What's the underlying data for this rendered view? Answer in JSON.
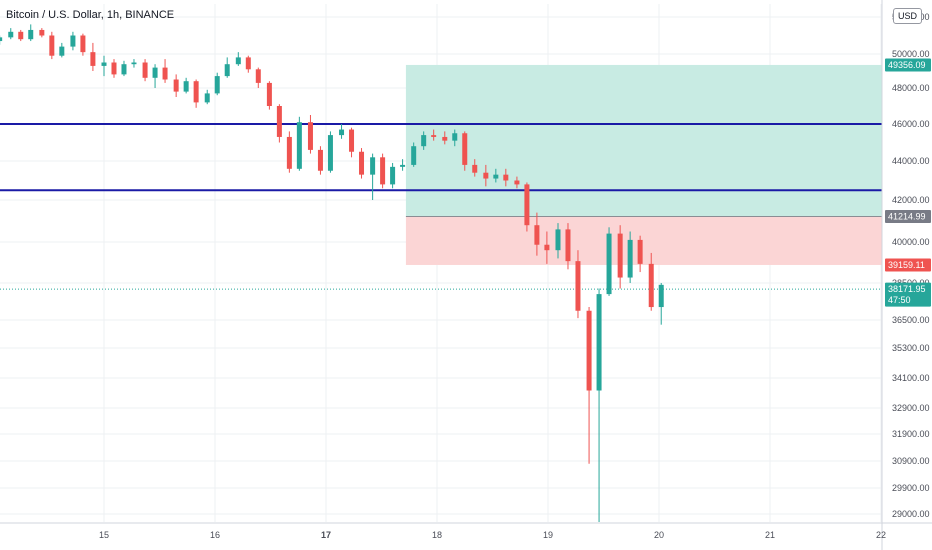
{
  "header": {
    "symbol_title": "Bitcoin / U.S. Dollar, 1h, BINANCE",
    "currency": "USD"
  },
  "colors": {
    "up": "#26a69a",
    "down": "#ef5350",
    "level_line": "#1a1aa6",
    "profit_zone": "#c8ebe3",
    "loss_zone": "#fbd5d5",
    "grid": "#eef0f3"
  },
  "chart_data": {
    "type": "candlestick",
    "title": "Bitcoin / U.S. Dollar, 1h, BINANCE",
    "currency": "USD",
    "x_tick_labels": [
      "15",
      "16",
      "17",
      "18",
      "19",
      "20",
      "21",
      "22"
    ],
    "x_range": [
      14.06,
      22.08
    ],
    "y_tick_labels": [
      "52000.00",
      "50000.00",
      "48000.00",
      "46000.00",
      "44000.00",
      "42000.00",
      "40000.00",
      "38500.00",
      "36500.00",
      "35300.00",
      "34100.00",
      "32900.00",
      "31900.00",
      "30900.00",
      "29900.00",
      "29000.00"
    ],
    "y_range": [
      28700,
      53000
    ],
    "grid": true,
    "horizontal_levels": [
      46000,
      42500
    ],
    "position_tool": {
      "start_day": 17.72,
      "end_day": 22.08,
      "take_profit": 49356.09,
      "entry": 41214.99,
      "stop_loss": 39159.11
    },
    "price_labels": [
      {
        "text": "49356.09",
        "value": 49356.09,
        "kind": "take_profit"
      },
      {
        "text": "41214.99",
        "value": 41214.99,
        "kind": "entry"
      },
      {
        "text": "39159.11",
        "value": 39159.11,
        "kind": "stop_loss"
      },
      {
        "text": "38171.95",
        "value": 38171.95,
        "kind": "last",
        "countdown": "47:50"
      }
    ],
    "candles": [
      {
        "t": 14.06,
        "o": 50700,
        "h": 51000,
        "l": 50500,
        "c": 50900
      },
      {
        "t": 14.16,
        "o": 50900,
        "h": 51400,
        "l": 50800,
        "c": 51200
      },
      {
        "t": 14.25,
        "o": 51200,
        "h": 51300,
        "l": 50700,
        "c": 50800
      },
      {
        "t": 14.34,
        "o": 50800,
        "h": 51600,
        "l": 50700,
        "c": 51300
      },
      {
        "t": 14.44,
        "o": 51300,
        "h": 51400,
        "l": 50900,
        "c": 51000
      },
      {
        "t": 14.53,
        "o": 51000,
        "h": 51200,
        "l": 49700,
        "c": 49900
      },
      {
        "t": 14.62,
        "o": 49900,
        "h": 50600,
        "l": 49800,
        "c": 50400
      },
      {
        "t": 14.72,
        "o": 50400,
        "h": 51200,
        "l": 50200,
        "c": 51000
      },
      {
        "t": 14.81,
        "o": 51000,
        "h": 51100,
        "l": 49900,
        "c": 50100
      },
      {
        "t": 14.9,
        "o": 50100,
        "h": 50600,
        "l": 49000,
        "c": 49300
      },
      {
        "t": 15,
        "o": 49300,
        "h": 49900,
        "l": 48700,
        "c": 49500
      },
      {
        "t": 15.09,
        "o": 49500,
        "h": 49700,
        "l": 48600,
        "c": 48800
      },
      {
        "t": 15.18,
        "o": 48800,
        "h": 49600,
        "l": 48700,
        "c": 49400
      },
      {
        "t": 15.27,
        "o": 49400,
        "h": 49700,
        "l": 49200,
        "c": 49500
      },
      {
        "t": 15.37,
        "o": 49500,
        "h": 49700,
        "l": 48400,
        "c": 48600
      },
      {
        "t": 15.46,
        "o": 48600,
        "h": 49400,
        "l": 48000,
        "c": 49200
      },
      {
        "t": 15.55,
        "o": 49200,
        "h": 49700,
        "l": 48300,
        "c": 48500
      },
      {
        "t": 15.65,
        "o": 48500,
        "h": 48800,
        "l": 47500,
        "c": 47800
      },
      {
        "t": 15.74,
        "o": 47800,
        "h": 48600,
        "l": 47700,
        "c": 48400
      },
      {
        "t": 15.83,
        "o": 48400,
        "h": 48500,
        "l": 46900,
        "c": 47200
      },
      {
        "t": 15.93,
        "o": 47200,
        "h": 47900,
        "l": 47100,
        "c": 47700
      },
      {
        "t": 16.02,
        "o": 47700,
        "h": 48900,
        "l": 47600,
        "c": 48700
      },
      {
        "t": 16.11,
        "o": 48700,
        "h": 49800,
        "l": 48600,
        "c": 49400
      },
      {
        "t": 16.21,
        "o": 49400,
        "h": 50100,
        "l": 49300,
        "c": 49800
      },
      {
        "t": 16.3,
        "o": 49800,
        "h": 49900,
        "l": 48900,
        "c": 49100
      },
      {
        "t": 16.39,
        "o": 49100,
        "h": 49200,
        "l": 48000,
        "c": 48300
      },
      {
        "t": 16.49,
        "o": 48300,
        "h": 48400,
        "l": 46800,
        "c": 47000
      },
      {
        "t": 16.58,
        "o": 47000,
        "h": 47100,
        "l": 45000,
        "c": 45300
      },
      {
        "t": 16.67,
        "o": 45300,
        "h": 45600,
        "l": 43400,
        "c": 43600
      },
      {
        "t": 16.76,
        "o": 43600,
        "h": 46400,
        "l": 43500,
        "c": 46100
      },
      {
        "t": 16.86,
        "o": 46100,
        "h": 46500,
        "l": 44400,
        "c": 44600
      },
      {
        "t": 16.95,
        "o": 44600,
        "h": 44800,
        "l": 43300,
        "c": 43500
      },
      {
        "t": 17.04,
        "o": 43500,
        "h": 45600,
        "l": 43400,
        "c": 45400
      },
      {
        "t": 17.14,
        "o": 45400,
        "h": 46000,
        "l": 45200,
        "c": 45700
      },
      {
        "t": 17.23,
        "o": 45700,
        "h": 45800,
        "l": 44200,
        "c": 44500
      },
      {
        "t": 17.32,
        "o": 44500,
        "h": 44700,
        "l": 43100,
        "c": 43300
      },
      {
        "t": 17.42,
        "o": 43300,
        "h": 44400,
        "l": 42000,
        "c": 44200
      },
      {
        "t": 17.51,
        "o": 44200,
        "h": 44400,
        "l": 42600,
        "c": 42800
      },
      {
        "t": 17.6,
        "o": 42800,
        "h": 43900,
        "l": 42600,
        "c": 43700
      },
      {
        "t": 17.69,
        "o": 43700,
        "h": 44100,
        "l": 43500,
        "c": 43800
      },
      {
        "t": 17.79,
        "o": 43800,
        "h": 45000,
        "l": 43700,
        "c": 44800
      },
      {
        "t": 17.88,
        "o": 44800,
        "h": 45600,
        "l": 44600,
        "c": 45400
      },
      {
        "t": 17.97,
        "o": 45400,
        "h": 45700,
        "l": 45100,
        "c": 45300
      },
      {
        "t": 18.07,
        "o": 45300,
        "h": 45600,
        "l": 44900,
        "c": 45100
      },
      {
        "t": 18.16,
        "o": 45100,
        "h": 45700,
        "l": 44800,
        "c": 45500
      },
      {
        "t": 18.25,
        "o": 45500,
        "h": 45600,
        "l": 43500,
        "c": 43800
      },
      {
        "t": 18.34,
        "o": 43800,
        "h": 44100,
        "l": 43200,
        "c": 43400
      },
      {
        "t": 18.44,
        "o": 43400,
        "h": 43800,
        "l": 42700,
        "c": 43100
      },
      {
        "t": 18.53,
        "o": 43100,
        "h": 43600,
        "l": 42900,
        "c": 43300
      },
      {
        "t": 18.62,
        "o": 43300,
        "h": 43600,
        "l": 42700,
        "c": 43000
      },
      {
        "t": 18.72,
        "o": 43000,
        "h": 43200,
        "l": 42600,
        "c": 42800
      },
      {
        "t": 18.81,
        "o": 42800,
        "h": 42900,
        "l": 40500,
        "c": 40800
      },
      {
        "t": 18.9,
        "o": 40800,
        "h": 41400,
        "l": 39500,
        "c": 39900
      },
      {
        "t": 18.99,
        "o": 39900,
        "h": 40500,
        "l": 39200,
        "c": 39700
      },
      {
        "t": 19.09,
        "o": 39700,
        "h": 40900,
        "l": 39400,
        "c": 40600
      },
      {
        "t": 19.18,
        "o": 40600,
        "h": 40900,
        "l": 39000,
        "c": 39300
      },
      {
        "t": 19.27,
        "o": 39300,
        "h": 39700,
        "l": 36600,
        "c": 37000
      },
      {
        "t": 19.37,
        "o": 37000,
        "h": 37200,
        "l": 30800,
        "c": 33600
      },
      {
        "t": 19.46,
        "o": 33600,
        "h": 38200,
        "l": 28700,
        "c": 37900
      },
      {
        "t": 19.55,
        "o": 37900,
        "h": 40700,
        "l": 37800,
        "c": 40400
      },
      {
        "t": 19.65,
        "o": 40400,
        "h": 40800,
        "l": 38200,
        "c": 38700
      },
      {
        "t": 19.74,
        "o": 38700,
        "h": 40500,
        "l": 38500,
        "c": 40100
      },
      {
        "t": 19.83,
        "o": 40100,
        "h": 40300,
        "l": 38900,
        "c": 39200
      },
      {
        "t": 19.93,
        "o": 39200,
        "h": 39600,
        "l": 37000,
        "c": 37200
      },
      {
        "t": 20.02,
        "o": 37200,
        "h": 38500,
        "l": 36300,
        "c": 38400
      }
    ]
  }
}
